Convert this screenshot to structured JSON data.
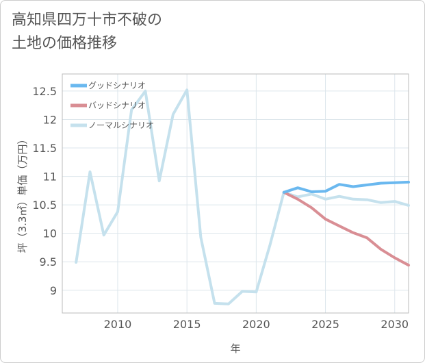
{
  "title_line1": "高知県四万十市不破の",
  "title_line2": "土地の価格推移",
  "chart_data": {
    "type": "line",
    "title": "高知県四万十市不破の土地の価格推移",
    "xlabel": "年",
    "ylabel": "坪（3.3㎡）単価（万円）",
    "xlim": [
      2006,
      2031
    ],
    "ylim": [
      8.6,
      12.8
    ],
    "xticks": [
      2010,
      2015,
      2020,
      2025,
      2030
    ],
    "yticks": [
      9,
      9.5,
      10,
      10.5,
      11,
      11.5,
      12,
      12.5
    ],
    "legend_position": "top-left",
    "series": [
      {
        "name": "グッドシナリオ",
        "color": "#6ab8ef",
        "x": [
          2022,
          2023,
          2024,
          2025,
          2026,
          2027,
          2028,
          2029,
          2030,
          2031
        ],
        "y": [
          10.72,
          10.8,
          10.73,
          10.74,
          10.86,
          10.82,
          10.85,
          10.88,
          10.89,
          10.9
        ]
      },
      {
        "name": "バッドシナリオ",
        "color": "#d98e94",
        "x": [
          2022,
          2023,
          2024,
          2025,
          2026,
          2027,
          2028,
          2029,
          2030,
          2031
        ],
        "y": [
          10.72,
          10.6,
          10.45,
          10.25,
          10.13,
          10.01,
          9.92,
          9.72,
          9.57,
          9.44
        ]
      },
      {
        "name": "ノーマルシナリオ",
        "color": "#c5e1ed",
        "x": [
          2007,
          2008,
          2009,
          2010,
          2011,
          2012,
          2013,
          2014,
          2015,
          2016,
          2017,
          2018,
          2019,
          2020,
          2021,
          2022,
          2023,
          2024,
          2025,
          2026,
          2027,
          2028,
          2029,
          2030,
          2031
        ],
        "y": [
          9.49,
          11.08,
          9.97,
          10.38,
          12.17,
          12.5,
          10.92,
          12.09,
          12.52,
          9.93,
          8.77,
          8.76,
          8.98,
          8.97,
          9.8,
          10.72,
          10.64,
          10.69,
          10.6,
          10.65,
          10.6,
          10.59,
          10.54,
          10.56,
          10.49
        ]
      }
    ]
  }
}
